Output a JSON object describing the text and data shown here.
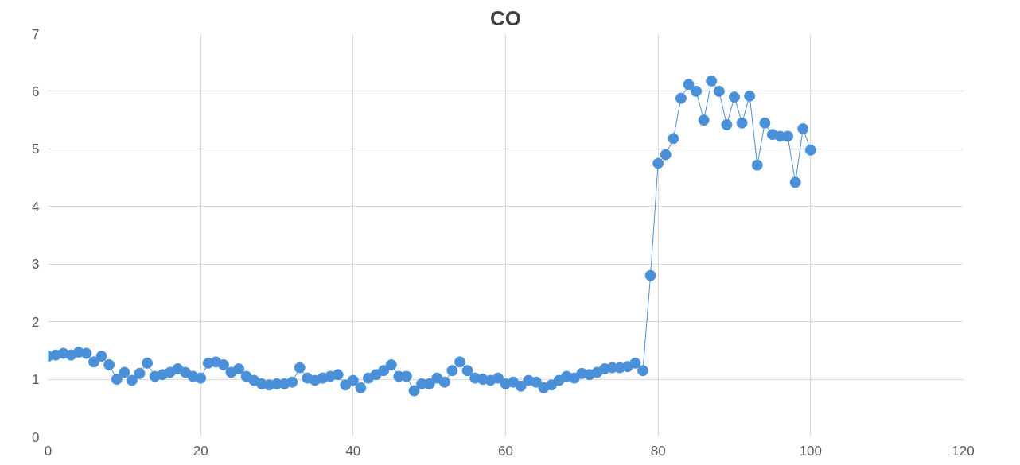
{
  "chart_data": {
    "type": "line",
    "title": "CO",
    "x": [
      0,
      1,
      2,
      3,
      4,
      5,
      6,
      7,
      8,
      9,
      10,
      11,
      12,
      13,
      14,
      15,
      16,
      17,
      18,
      19,
      20,
      21,
      22,
      23,
      24,
      25,
      26,
      27,
      28,
      29,
      30,
      31,
      32,
      33,
      34,
      35,
      36,
      37,
      38,
      39,
      40,
      41,
      42,
      43,
      44,
      45,
      46,
      47,
      48,
      49,
      50,
      51,
      52,
      53,
      54,
      55,
      56,
      57,
      58,
      59,
      60,
      61,
      62,
      63,
      64,
      65,
      66,
      67,
      68,
      69,
      70,
      71,
      72,
      73,
      74,
      75,
      76,
      77,
      78,
      79,
      80,
      81,
      82,
      83,
      84,
      85,
      86,
      87,
      88,
      89,
      90,
      91,
      92,
      93,
      94,
      95,
      96,
      97,
      98,
      99,
      100
    ],
    "series": [
      {
        "color": "#4a90d9",
        "values": [
          1.4,
          1.42,
          1.45,
          1.42,
          1.47,
          1.45,
          1.3,
          1.4,
          1.25,
          1.0,
          1.12,
          0.98,
          1.1,
          1.28,
          1.05,
          1.08,
          1.12,
          1.18,
          1.12,
          1.05,
          1.02,
          1.28,
          1.3,
          1.25,
          1.12,
          1.18,
          1.05,
          0.98,
          0.92,
          0.9,
          0.92,
          0.92,
          0.95,
          1.2,
          1.02,
          0.98,
          1.02,
          1.05,
          1.08,
          0.9,
          0.98,
          0.85,
          1.02,
          1.08,
          1.15,
          1.25,
          1.05,
          1.05,
          0.8,
          0.92,
          0.92,
          1.02,
          0.95,
          1.15,
          1.3,
          1.15,
          1.02,
          1.0,
          0.98,
          1.02,
          0.92,
          0.95,
          0.88,
          0.98,
          0.95,
          0.85,
          0.9,
          0.98,
          1.05,
          1.02,
          1.1,
          1.08,
          1.12,
          1.18,
          1.2,
          1.2,
          1.22,
          1.28,
          1.15,
          2.8,
          4.75,
          4.9,
          5.18,
          5.88,
          6.12,
          6.0,
          5.5,
          6.18,
          6.0,
          5.42,
          5.9,
          5.45,
          5.92,
          4.72,
          5.45,
          5.25,
          5.22,
          5.22,
          4.42,
          5.35,
          4.98
        ]
      }
    ],
    "xlim": [
      0,
      120
    ],
    "xticks": [
      0,
      20,
      40,
      60,
      80,
      100,
      120
    ],
    "ylim": [
      0,
      7
    ],
    "yticks": [
      0,
      1,
      2,
      3,
      4,
      5,
      6,
      7
    ],
    "grid": true,
    "marker": "circle",
    "line_style": "solid"
  }
}
